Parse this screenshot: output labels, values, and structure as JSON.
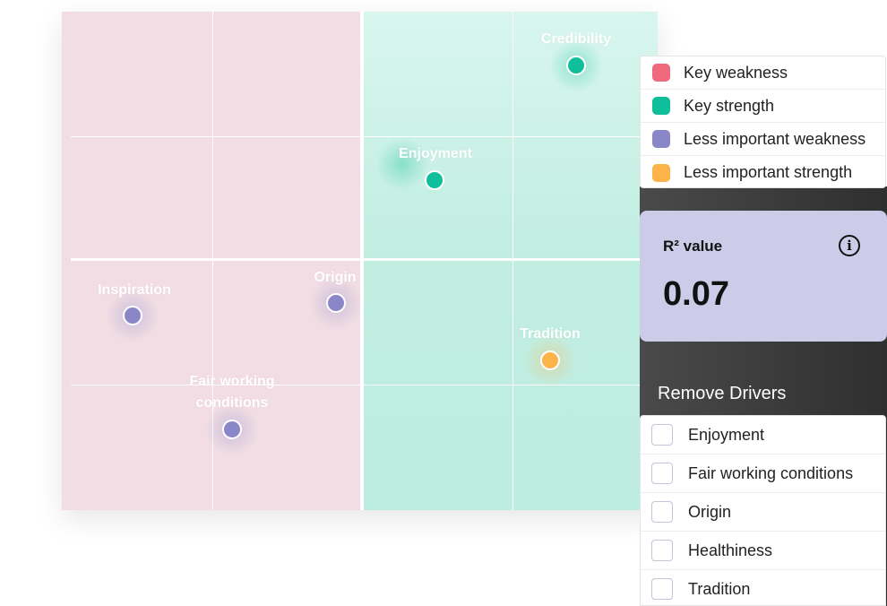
{
  "colors": {
    "key_weakness": "#f06a7d",
    "key_strength": "#0fbf9b",
    "less_important_weakness": "#8a87c8",
    "less_important_strength": "#fbb34a",
    "weakness_zone": "#f1dde3",
    "strength_zone": "#c3eee2",
    "r2_card": "#cccbe8"
  },
  "plot": {
    "points": [
      {
        "label": "Credibility",
        "category": "key_strength"
      },
      {
        "label": "Enjoyment",
        "category": "key_strength"
      },
      {
        "label": "Inspiration",
        "category": "less_important_weakness"
      },
      {
        "label": "Origin",
        "category": "less_important_weakness"
      },
      {
        "label": "Fair working conditions",
        "category": "less_important_weakness"
      },
      {
        "label": "Tradition",
        "category": "less_important_strength"
      }
    ]
  },
  "legend": {
    "items": [
      {
        "label": "Key weakness",
        "color": "#f06a7d"
      },
      {
        "label": "Key strength",
        "color": "#0fbf9b"
      },
      {
        "label": "Less important weakness",
        "color": "#8a87c8"
      },
      {
        "label": "Less important strength",
        "color": "#fbb34a"
      }
    ]
  },
  "r2": {
    "title": "R² value",
    "value": "0.07",
    "icon": "info-icon"
  },
  "remove_drivers": {
    "title": "Remove Drivers",
    "items": [
      {
        "label": "Enjoyment",
        "checked": false
      },
      {
        "label": "Fair working conditions",
        "checked": false
      },
      {
        "label": "Origin",
        "checked": false
      },
      {
        "label": "Healthiness",
        "checked": false
      },
      {
        "label": "Tradition",
        "checked": false
      }
    ]
  }
}
